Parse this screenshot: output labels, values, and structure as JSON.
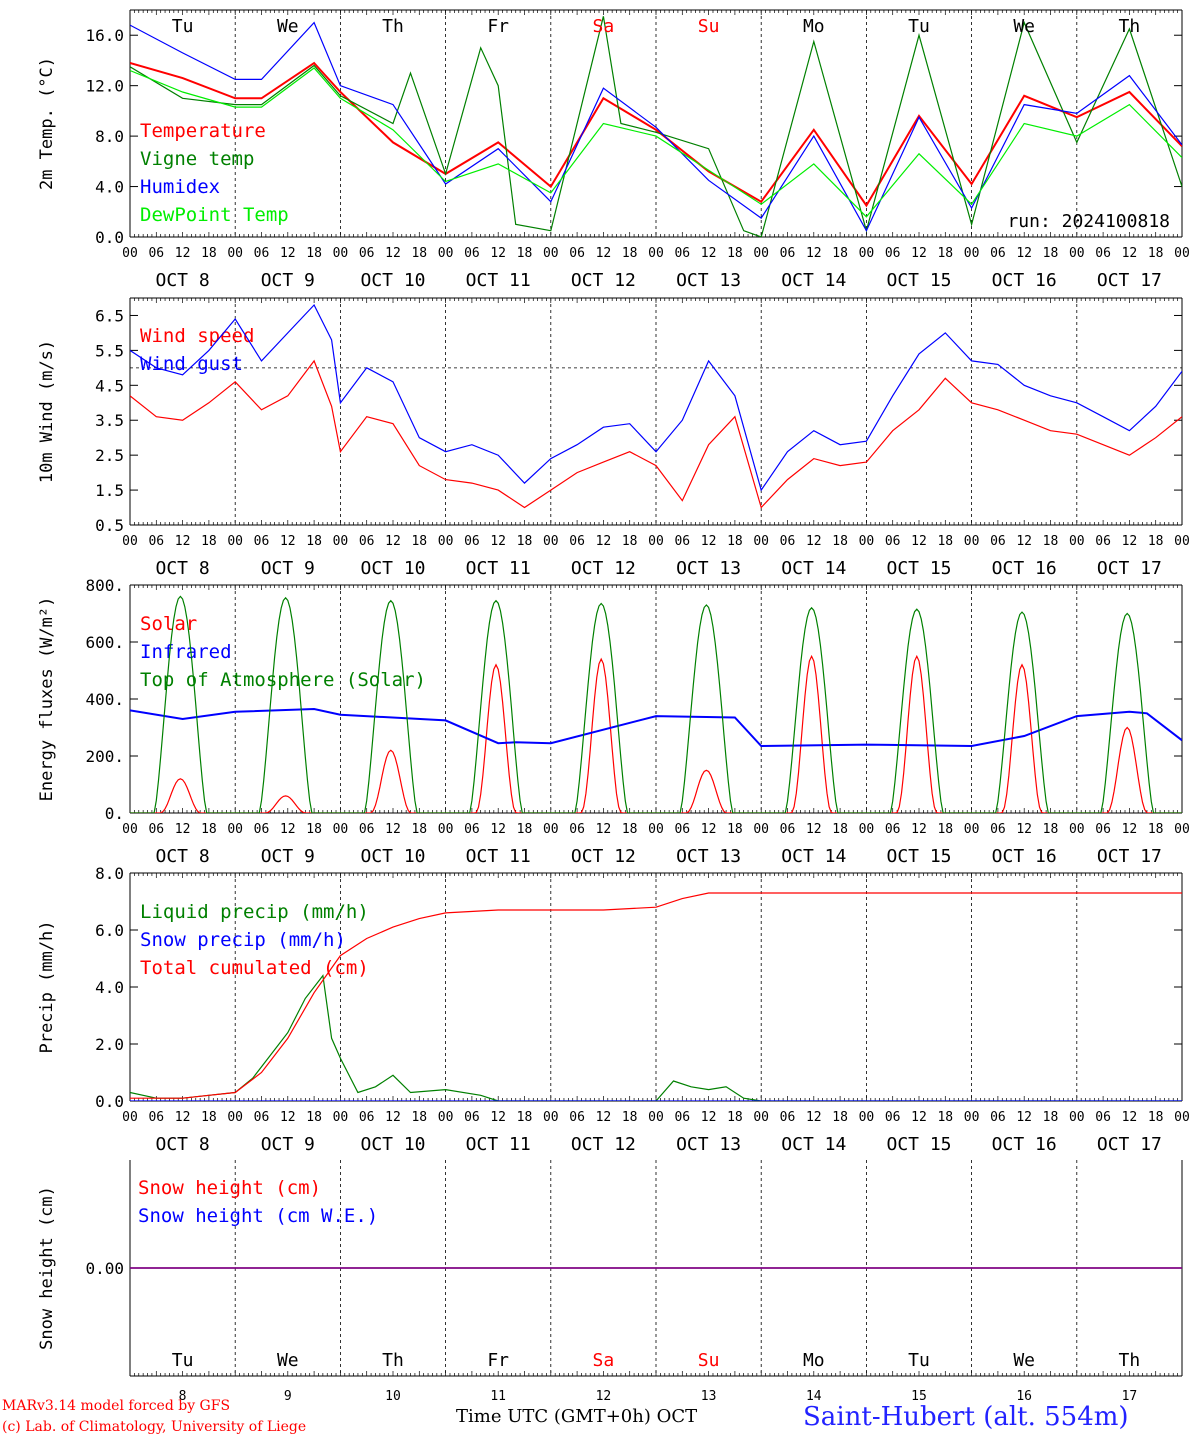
{
  "station": "Saint-Hubert (alt. 554m)",
  "run_label": "run: 2024100818",
  "credits": [
    "MARv3.14 model forced by GFS",
    "(c) Lab. of Climatology, University of Liege"
  ],
  "x_axis_title": "Time UTC (GMT+0h) OCT",
  "hour_ticks": [
    "00",
    "06",
    "12",
    "18"
  ],
  "days": [
    {
      "weekday": "Tu",
      "date": "OCT 8",
      "num": "8",
      "weekend": false
    },
    {
      "weekday": "We",
      "date": "OCT 9",
      "num": "9",
      "weekend": false
    },
    {
      "weekday": "Th",
      "date": "OCT 10",
      "num": "10",
      "weekend": false
    },
    {
      "weekday": "Fr",
      "date": "OCT 11",
      "num": "11",
      "weekend": false
    },
    {
      "weekday": "Sa",
      "date": "OCT 12",
      "num": "12",
      "weekend": true
    },
    {
      "weekday": "Su",
      "date": "OCT 13",
      "num": "13",
      "weekend": true
    },
    {
      "weekday": "Mo",
      "date": "OCT 14",
      "num": "14",
      "weekend": false
    },
    {
      "weekday": "Tu",
      "date": "OCT 15",
      "num": "15",
      "weekend": false
    },
    {
      "weekday": "We",
      "date": "OCT 16",
      "num": "16",
      "weekend": false
    },
    {
      "weekday": "Th",
      "date": "OCT 17",
      "num": "17",
      "weekend": false
    }
  ],
  "colors": {
    "red": "#ff0000",
    "green": "#008000",
    "blue": "#0000ff",
    "lime": "#00ee00",
    "purple": "#800080"
  },
  "chart_data": [
    {
      "id": "temperature",
      "type": "line",
      "ylabel": "2m Temp. (°C)",
      "ylim": [
        0,
        18
      ],
      "yticks": [
        "0.0",
        "4.0",
        "8.0",
        "12.0",
        "16.0"
      ],
      "ytick_values": [
        0,
        4,
        8,
        12,
        16
      ],
      "x_unit": "hours since Oct 8 00 UTC",
      "series": [
        {
          "name": "Temperature",
          "color": "#ff0000",
          "x": [
            0,
            12,
            24,
            30,
            42,
            48,
            60,
            72,
            84,
            96,
            108,
            120,
            132,
            144,
            156,
            168,
            180,
            192,
            204,
            216,
            228,
            240
          ],
          "y": [
            13.8,
            12.6,
            11.0,
            11.0,
            13.8,
            11.5,
            7.5,
            5.0,
            7.5,
            4.0,
            11.0,
            8.5,
            5.2,
            2.8,
            8.5,
            2.5,
            9.6,
            4.2,
            11.2,
            9.5,
            11.5,
            7.2
          ]
        },
        {
          "name": "Vigne temp",
          "color": "#008000",
          "x": [
            0,
            12,
            24,
            30,
            42,
            48,
            60,
            64,
            72,
            80,
            84,
            88,
            96,
            108,
            112,
            120,
            132,
            140,
            144,
            156,
            168,
            180,
            192,
            204,
            216,
            228,
            240
          ],
          "y": [
            13.5,
            11.0,
            10.5,
            10.5,
            13.6,
            11.2,
            9.0,
            13.0,
            5.0,
            15.0,
            12.0,
            1.0,
            0.5,
            17.5,
            9.0,
            8.3,
            7.0,
            0.5,
            0.0,
            15.5,
            0.5,
            16.0,
            1.0,
            17.0,
            7.5,
            16.5,
            4.0
          ]
        },
        {
          "name": "Humidex",
          "color": "#0000ff",
          "x": [
            0,
            12,
            24,
            30,
            42,
            48,
            60,
            72,
            84,
            96,
            108,
            120,
            132,
            144,
            156,
            168,
            180,
            192,
            204,
            216,
            228,
            240
          ],
          "y": [
            16.8,
            14.6,
            12.5,
            12.5,
            17.0,
            12.0,
            10.5,
            4.2,
            7.0,
            2.8,
            11.8,
            8.7,
            4.5,
            1.5,
            8.0,
            0.5,
            9.5,
            2.3,
            10.5,
            9.8,
            12.8,
            7.3
          ]
        },
        {
          "name": "DewPoint Temp",
          "color": "#00ee00",
          "x": [
            0,
            12,
            24,
            30,
            42,
            48,
            60,
            72,
            84,
            96,
            108,
            120,
            132,
            144,
            156,
            168,
            180,
            192,
            204,
            216,
            228,
            240
          ],
          "y": [
            13.2,
            11.5,
            10.3,
            10.3,
            13.4,
            11.0,
            8.5,
            4.4,
            5.8,
            3.5,
            9.0,
            8.0,
            5.3,
            2.6,
            5.8,
            1.6,
            6.6,
            2.6,
            9.0,
            8.0,
            10.5,
            6.3
          ]
        }
      ]
    },
    {
      "id": "wind",
      "type": "line",
      "ylabel": "10m Wind (m/s)",
      "ylim": [
        0.5,
        7.0
      ],
      "yticks": [
        "0.5",
        "1.5",
        "2.5",
        "3.5",
        "4.5",
        "5.5",
        "6.5"
      ],
      "ytick_values": [
        0.5,
        1.5,
        2.5,
        3.5,
        4.5,
        5.5,
        6.5
      ],
      "reference_line": 5.0,
      "series": [
        {
          "name": "Wind speed",
          "color": "#ff0000",
          "x": [
            0,
            6,
            12,
            18,
            24,
            30,
            36,
            42,
            46,
            48,
            54,
            60,
            66,
            72,
            78,
            84,
            90,
            96,
            102,
            108,
            114,
            120,
            126,
            132,
            138,
            144,
            150,
            156,
            162,
            168,
            174,
            180,
            186,
            192,
            198,
            204,
            210,
            216,
            222,
            228,
            234,
            240
          ],
          "y": [
            4.2,
            3.6,
            3.5,
            4.0,
            4.6,
            3.8,
            4.2,
            5.2,
            3.9,
            2.6,
            3.6,
            3.4,
            2.2,
            1.8,
            1.7,
            1.5,
            1.0,
            1.5,
            2.0,
            2.3,
            2.6,
            2.2,
            1.2,
            2.8,
            3.6,
            1.0,
            1.8,
            2.4,
            2.2,
            2.3,
            3.2,
            3.8,
            4.7,
            4.0,
            3.8,
            3.5,
            3.2,
            3.1,
            2.8,
            2.5,
            3.0,
            3.6
          ]
        },
        {
          "name": "Wind gust",
          "color": "#0000ff",
          "x": [
            0,
            6,
            12,
            18,
            24,
            30,
            36,
            42,
            46,
            48,
            54,
            60,
            66,
            72,
            78,
            84,
            90,
            96,
            102,
            108,
            114,
            120,
            126,
            132,
            138,
            144,
            150,
            156,
            162,
            168,
            174,
            180,
            186,
            192,
            198,
            204,
            210,
            216,
            222,
            228,
            234,
            240
          ],
          "y": [
            5.5,
            5.0,
            4.8,
            5.5,
            6.4,
            5.2,
            6.0,
            6.8,
            5.8,
            4.0,
            5.0,
            4.6,
            3.0,
            2.6,
            2.8,
            2.5,
            1.7,
            2.4,
            2.8,
            3.3,
            3.4,
            2.6,
            3.5,
            5.2,
            4.2,
            1.5,
            2.6,
            3.2,
            2.8,
            2.9,
            4.2,
            5.4,
            6.0,
            5.2,
            5.1,
            4.5,
            4.2,
            4.0,
            3.6,
            3.2,
            3.9,
            4.9
          ]
        }
      ]
    },
    {
      "id": "energy",
      "type": "line",
      "ylabel": "Energy fluxes (W/m²)",
      "ylim": [
        0,
        800
      ],
      "yticks": [
        "0.",
        "200.",
        "400.",
        "600.",
        "800."
      ],
      "ytick_values": [
        0,
        200,
        400,
        600,
        800
      ],
      "series": [
        {
          "name": "Solar",
          "color": "#ff0000",
          "daily_peak": [
            120,
            60,
            220,
            520,
            540,
            150,
            550,
            550,
            520,
            300
          ]
        },
        {
          "name": "Infrared",
          "color": "#0000ff",
          "x": [
            0,
            12,
            24,
            42,
            48,
            72,
            84,
            88,
            96,
            120,
            138,
            144,
            168,
            192,
            204,
            216,
            228,
            232,
            240
          ],
          "y": [
            360,
            330,
            355,
            365,
            345,
            325,
            245,
            248,
            245,
            340,
            335,
            235,
            240,
            235,
            270,
            340,
            355,
            350,
            255
          ]
        },
        {
          "name": "Top of Atmosphere (Solar)",
          "color": "#008000",
          "daily_peak": [
            760,
            755,
            745,
            745,
            735,
            730,
            720,
            715,
            705,
            700
          ]
        }
      ]
    },
    {
      "id": "precip",
      "type": "line",
      "ylabel": "Precip (mm/h)",
      "ylim": [
        0,
        8
      ],
      "yticks": [
        "0.0",
        "2.0",
        "4.0",
        "6.0",
        "8.0"
      ],
      "ytick_values": [
        0,
        2,
        4,
        6,
        8
      ],
      "series": [
        {
          "name": "Liquid precip (mm/h)",
          "color": "#008000",
          "x": [
            0,
            6,
            12,
            18,
            24,
            28,
            32,
            36,
            40,
            44,
            46,
            48,
            52,
            56,
            60,
            64,
            72,
            80,
            84,
            96,
            120,
            124,
            128,
            132,
            136,
            140,
            144,
            240
          ],
          "y": [
            0.3,
            0.1,
            0.1,
            0.2,
            0.3,
            0.8,
            1.6,
            2.4,
            3.6,
            4.4,
            2.2,
            1.5,
            0.3,
            0.5,
            0.9,
            0.3,
            0.4,
            0.2,
            0.0,
            0.0,
            0.0,
            0.7,
            0.5,
            0.4,
            0.5,
            0.1,
            0.0,
            0.0
          ]
        },
        {
          "name": "Snow precip (mm/h)",
          "color": "#0000ff",
          "x": [
            0,
            240
          ],
          "y": [
            0,
            0
          ]
        },
        {
          "name": "Total cumulated (cm)",
          "color": "#ff0000",
          "x": [
            0,
            12,
            18,
            24,
            30,
            36,
            42,
            48,
            54,
            60,
            66,
            72,
            84,
            96,
            108,
            120,
            126,
            132,
            144,
            168,
            192,
            216,
            240
          ],
          "y": [
            0.1,
            0.1,
            0.2,
            0.3,
            1.0,
            2.2,
            3.8,
            5.1,
            5.7,
            6.1,
            6.4,
            6.6,
            6.7,
            6.7,
            6.7,
            6.8,
            7.1,
            7.3,
            7.3,
            7.3,
            7.3,
            7.3,
            7.3
          ]
        }
      ]
    },
    {
      "id": "snow",
      "type": "line",
      "ylabel": "Snow height (cm)",
      "ylim": [
        -1,
        1
      ],
      "yticks": [
        "0.00"
      ],
      "ytick_values": [
        0
      ],
      "series": [
        {
          "name": "Snow height (cm)",
          "color": "#ff0000",
          "x": [
            0,
            240
          ],
          "y": [
            0,
            0
          ]
        },
        {
          "name": "Snow height (cm W.E.)",
          "color": "#0000ff",
          "x": [
            0,
            240
          ],
          "y": [
            0,
            0
          ]
        }
      ]
    }
  ]
}
